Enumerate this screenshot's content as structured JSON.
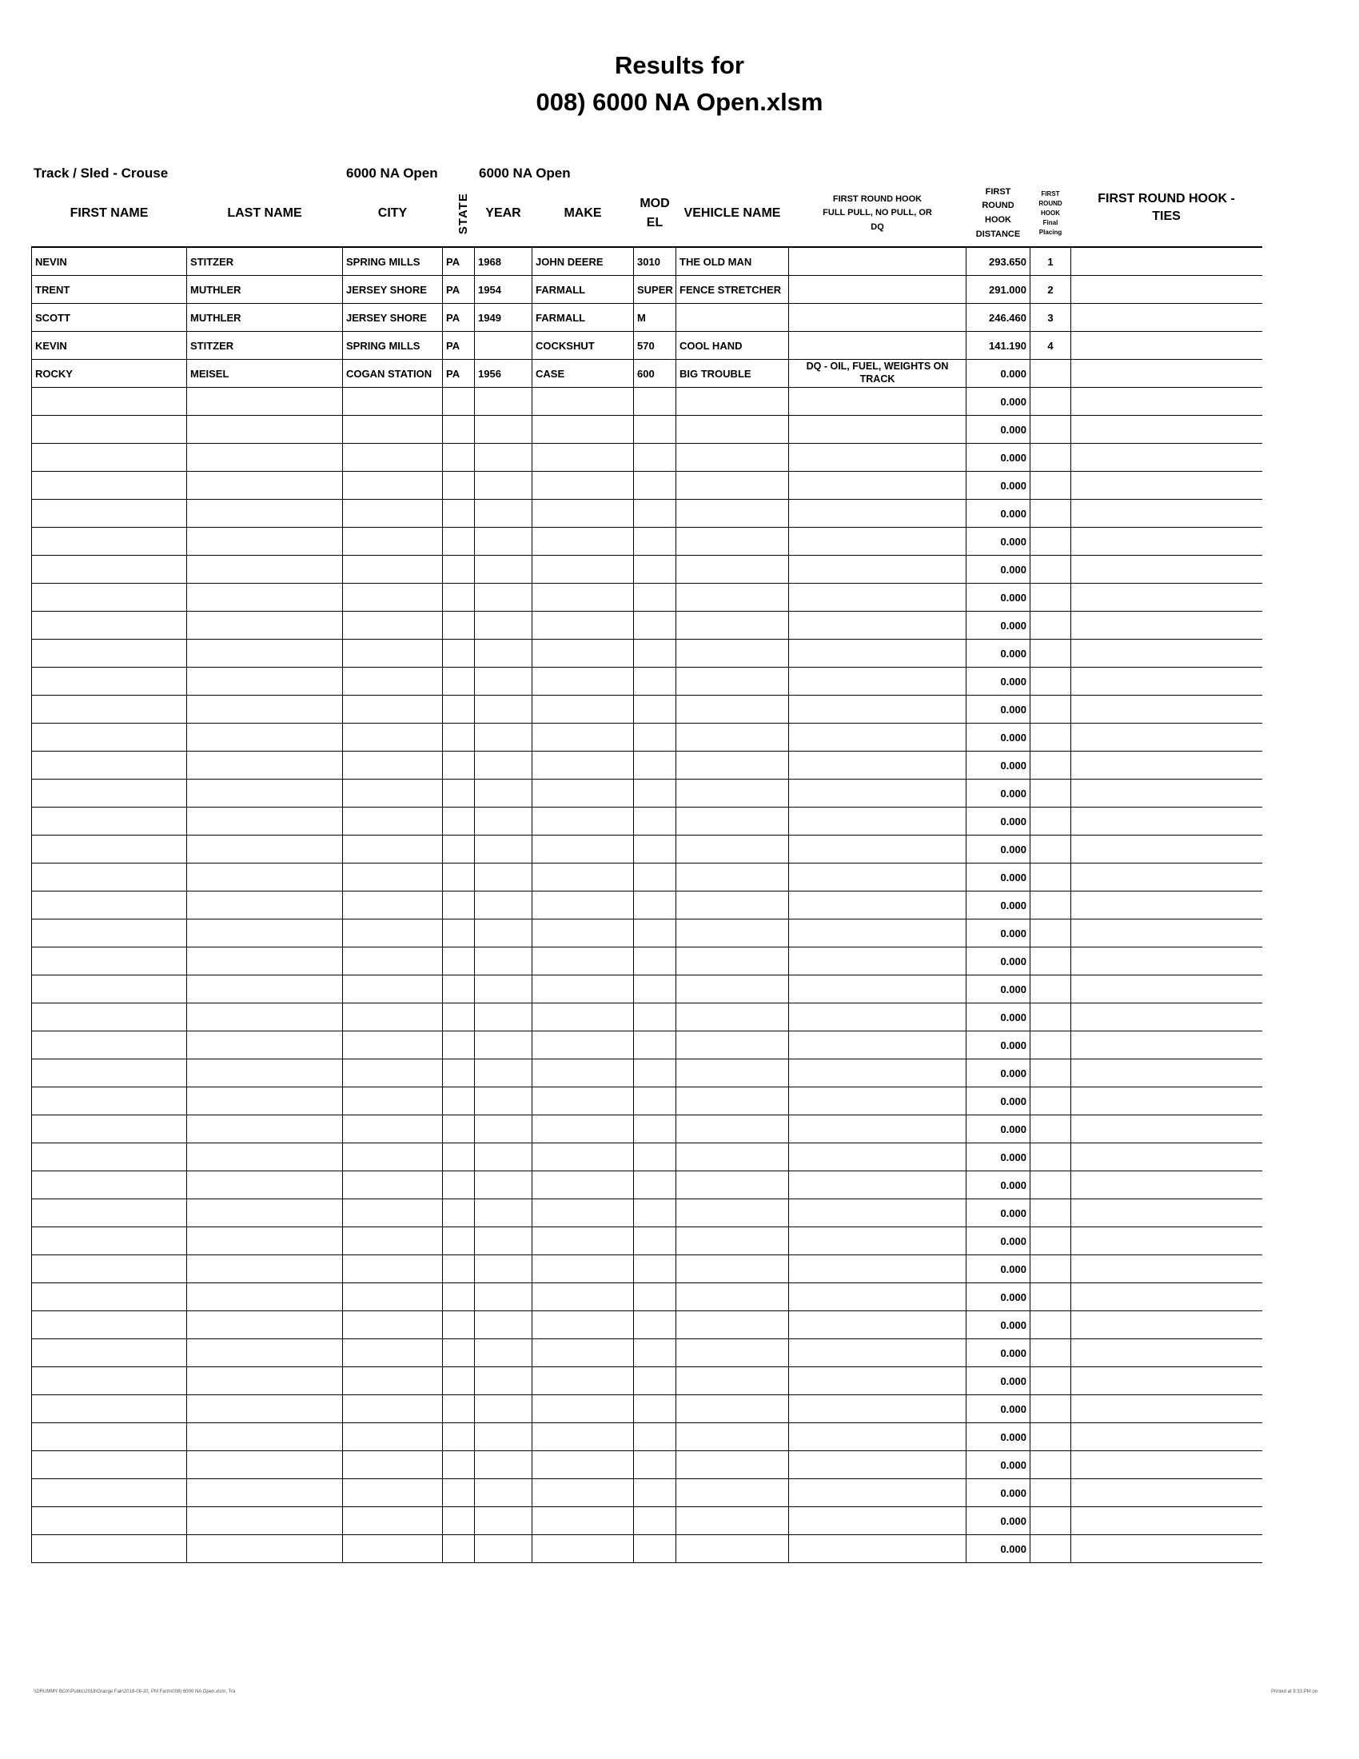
{
  "title_line1": "Results for",
  "title_line2": "008) 6000 NA Open.xlsm",
  "meta": {
    "track": "Track / Sled - Crouse",
    "class1": "6000 NA Open",
    "class2": "6000 NA Open"
  },
  "columns": [
    "FIRST NAME",
    "LAST NAME",
    "CITY",
    "STATE",
    "YEAR",
    "MAKE",
    "MOD EL",
    "VEHICLE NAME",
    "FIRST ROUND HOOK FULL PULL, NO PULL, OR DQ",
    "FIRST ROUND HOOK DISTANCE",
    "FIRST ROUND HOOK Final Placing",
    "FIRST ROUND HOOK - TIES"
  ],
  "rows": [
    [
      "NEVIN",
      "STITZER",
      "SPRING MILLS",
      "PA",
      "1968",
      "JOHN DEERE",
      "3010",
      "THE OLD MAN",
      "",
      "293.650",
      "1",
      ""
    ],
    [
      "TRENT",
      "MUTHLER",
      "JERSEY SHORE",
      "PA",
      "1954",
      "FARMALL",
      "SUPER",
      "FENCE STRETCHER",
      "",
      "291.000",
      "2",
      ""
    ],
    [
      "SCOTT",
      "MUTHLER",
      "JERSEY SHORE",
      "PA",
      "1949",
      "FARMALL",
      "M",
      "",
      "",
      "246.460",
      "3",
      ""
    ],
    [
      "KEVIN",
      "STITZER",
      "SPRING MILLS",
      "PA",
      "",
      "COCKSHUT",
      "570",
      "COOL HAND",
      "",
      "141.190",
      "4",
      ""
    ],
    [
      "ROCKY",
      "MEISEL",
      "COGAN STATION",
      "PA",
      "1956",
      "CASE",
      "600",
      "BIG TROUBLE",
      "DQ - OIL, FUEL, WEIGHTS ON TRACK",
      "0.000",
      "",
      ""
    ],
    [
      "",
      "",
      "",
      "",
      "",
      "",
      "",
      "",
      "",
      "0.000",
      "",
      ""
    ],
    [
      "",
      "",
      "",
      "",
      "",
      "",
      "",
      "",
      "",
      "0.000",
      "",
      ""
    ],
    [
      "",
      "",
      "",
      "",
      "",
      "",
      "",
      "",
      "",
      "0.000",
      "",
      ""
    ],
    [
      "",
      "",
      "",
      "",
      "",
      "",
      "",
      "",
      "",
      "0.000",
      "",
      ""
    ],
    [
      "",
      "",
      "",
      "",
      "",
      "",
      "",
      "",
      "",
      "0.000",
      "",
      ""
    ],
    [
      "",
      "",
      "",
      "",
      "",
      "",
      "",
      "",
      "",
      "0.000",
      "",
      ""
    ],
    [
      "",
      "",
      "",
      "",
      "",
      "",
      "",
      "",
      "",
      "0.000",
      "",
      ""
    ],
    [
      "",
      "",
      "",
      "",
      "",
      "",
      "",
      "",
      "",
      "0.000",
      "",
      ""
    ],
    [
      "",
      "",
      "",
      "",
      "",
      "",
      "",
      "",
      "",
      "0.000",
      "",
      ""
    ],
    [
      "",
      "",
      "",
      "",
      "",
      "",
      "",
      "",
      "",
      "0.000",
      "",
      ""
    ],
    [
      "",
      "",
      "",
      "",
      "",
      "",
      "",
      "",
      "",
      "0.000",
      "",
      ""
    ],
    [
      "",
      "",
      "",
      "",
      "",
      "",
      "",
      "",
      "",
      "0.000",
      "",
      ""
    ],
    [
      "",
      "",
      "",
      "",
      "",
      "",
      "",
      "",
      "",
      "0.000",
      "",
      ""
    ],
    [
      "",
      "",
      "",
      "",
      "",
      "",
      "",
      "",
      "",
      "0.000",
      "",
      ""
    ],
    [
      "",
      "",
      "",
      "",
      "",
      "",
      "",
      "",
      "",
      "0.000",
      "",
      ""
    ],
    [
      "",
      "",
      "",
      "",
      "",
      "",
      "",
      "",
      "",
      "0.000",
      "",
      ""
    ],
    [
      "",
      "",
      "",
      "",
      "",
      "",
      "",
      "",
      "",
      "0.000",
      "",
      ""
    ],
    [
      "",
      "",
      "",
      "",
      "",
      "",
      "",
      "",
      "",
      "0.000",
      "",
      ""
    ],
    [
      "",
      "",
      "",
      "",
      "",
      "",
      "",
      "",
      "",
      "0.000",
      "",
      ""
    ],
    [
      "",
      "",
      "",
      "",
      "",
      "",
      "",
      "",
      "",
      "0.000",
      "",
      ""
    ],
    [
      "",
      "",
      "",
      "",
      "",
      "",
      "",
      "",
      "",
      "0.000",
      "",
      ""
    ],
    [
      "",
      "",
      "",
      "",
      "",
      "",
      "",
      "",
      "",
      "0.000",
      "",
      ""
    ],
    [
      "",
      "",
      "",
      "",
      "",
      "",
      "",
      "",
      "",
      "0.000",
      "",
      ""
    ],
    [
      "",
      "",
      "",
      "",
      "",
      "",
      "",
      "",
      "",
      "0.000",
      "",
      ""
    ],
    [
      "",
      "",
      "",
      "",
      "",
      "",
      "",
      "",
      "",
      "0.000",
      "",
      ""
    ],
    [
      "",
      "",
      "",
      "",
      "",
      "",
      "",
      "",
      "",
      "0.000",
      "",
      ""
    ],
    [
      "",
      "",
      "",
      "",
      "",
      "",
      "",
      "",
      "",
      "0.000",
      "",
      ""
    ],
    [
      "",
      "",
      "",
      "",
      "",
      "",
      "",
      "",
      "",
      "0.000",
      "",
      ""
    ],
    [
      "",
      "",
      "",
      "",
      "",
      "",
      "",
      "",
      "",
      "0.000",
      "",
      ""
    ],
    [
      "",
      "",
      "",
      "",
      "",
      "",
      "",
      "",
      "",
      "0.000",
      "",
      ""
    ],
    [
      "",
      "",
      "",
      "",
      "",
      "",
      "",
      "",
      "",
      "0.000",
      "",
      ""
    ],
    [
      "",
      "",
      "",
      "",
      "",
      "",
      "",
      "",
      "",
      "0.000",
      "",
      ""
    ],
    [
      "",
      "",
      "",
      "",
      "",
      "",
      "",
      "",
      "",
      "0.000",
      "",
      ""
    ],
    [
      "",
      "",
      "",
      "",
      "",
      "",
      "",
      "",
      "",
      "0.000",
      "",
      ""
    ],
    [
      "",
      "",
      "",
      "",
      "",
      "",
      "",
      "",
      "",
      "0.000",
      "",
      ""
    ],
    [
      "",
      "",
      "",
      "",
      "",
      "",
      "",
      "",
      "",
      "0.000",
      "",
      ""
    ],
    [
      "",
      "",
      "",
      "",
      "",
      "",
      "",
      "",
      "",
      "0.000",
      "",
      ""
    ],
    [
      "",
      "",
      "",
      "",
      "",
      "",
      "",
      "",
      "",
      "0.000",
      "",
      ""
    ],
    [
      "",
      "",
      "",
      "",
      "",
      "",
      "",
      "",
      "",
      "0.000",
      "",
      ""
    ],
    [
      "",
      "",
      "",
      "",
      "",
      "",
      "",
      "",
      "",
      "0.000",
      "",
      ""
    ],
    [
      "",
      "",
      "",
      "",
      "",
      "",
      "",
      "",
      "",
      "0.000",
      "",
      ""
    ],
    [
      "",
      "",
      "",
      "",
      "",
      "",
      "",
      "",
      "",
      "0.000",
      "",
      ""
    ]
  ],
  "footer_left": "\\\\DRUMMY BOX\\Public\\2018\\Grange Fair\\2018-08-20, PM Farm\\008) 6000 NA Open.xlsm, Tra",
  "footer_right": "Printed at 9:33 PM on"
}
